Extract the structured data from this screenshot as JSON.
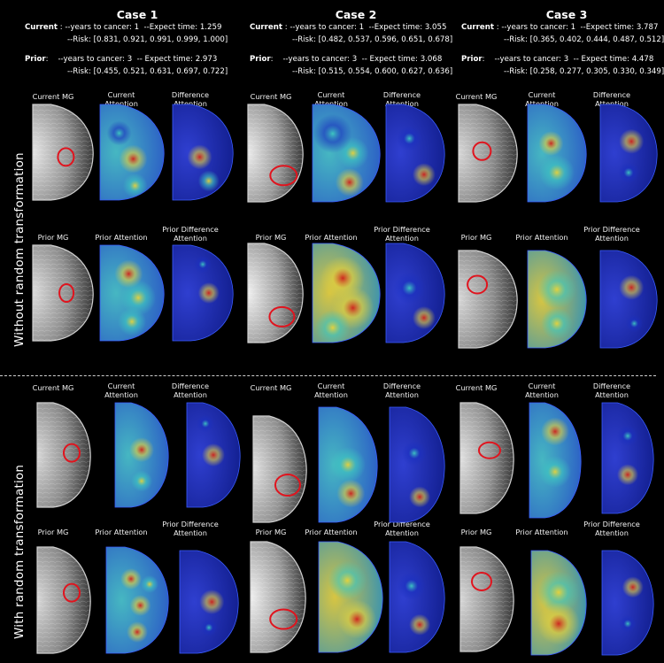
{
  "cases": [
    {
      "title": "Case 1",
      "current_label": "Current",
      "current_line1": " : --years to cancer: 1  --Expect time: 1.259",
      "current_line2": "--Risk: [0.831, 0.921, 0.991, 0.999, 1.000]",
      "prior_label": "Prior",
      "prior_line1": ":    --years to cancer: 3  -- Expect time: 2.973",
      "prior_line2": "--Risk: [0.455, 0.521, 0.631, 0.697, 0.722]"
    },
    {
      "title": "Case 2",
      "current_label": "Current",
      "current_line1": " : --years to cancer: 1  --Expect time: 3.055",
      "current_line2": "--Risk: [0.482, 0.537, 0.596, 0.651, 0.678]",
      "prior_label": "Prior",
      "prior_line1": ":    --years to cancer: 3  -- Expect time: 3.068",
      "prior_line2": "--Risk: [0.515, 0.554, 0.600, 0.627, 0.636]"
    },
    {
      "title": "Case 3",
      "current_label": "Current",
      "current_line1": " : --years to cancer: 1  --Expect time: 3.787",
      "current_line2": "--Risk: [0.365, 0.402, 0.444, 0.487, 0.512]",
      "prior_label": "Prior",
      "prior_line1": ":    --years to cancer: 3  -- Expect time: 4.478",
      "prior_line2": "--Risk: [0.258, 0.277, 0.305, 0.330, 0.349]"
    }
  ],
  "labels": {
    "current_mg": "Current MG",
    "current_attention_1": "Current",
    "current_attention_2": "Attention",
    "difference_attention_1": "Difference",
    "difference_attention_2": "Attention",
    "prior_mg": "Prior MG",
    "prior_attention": "Prior Attention",
    "prior_difference_1": "Prior Difference",
    "prior_difference_2": "Attention"
  },
  "sections": {
    "without": "Without random transformation",
    "with": "With random transformation"
  },
  "colors": {
    "background": "#000000",
    "text": "#ffffff",
    "lesion_circle": "#e0141e",
    "heat_low": "#1a2fbf",
    "heat_mid": "#3ec9c0",
    "heat_high": "#e8d23a",
    "heat_peak": "#d0201c"
  }
}
